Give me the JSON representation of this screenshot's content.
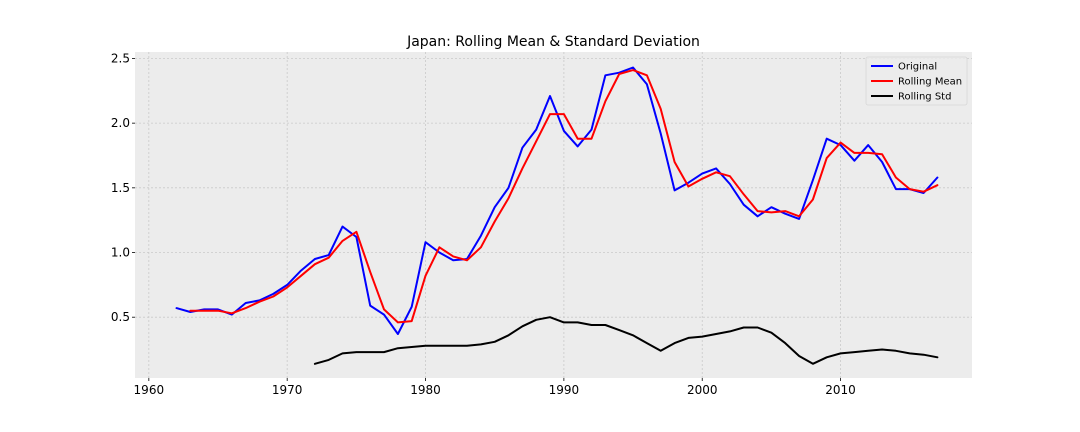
{
  "chart_data": {
    "type": "line",
    "title": "Japan: Rolling Mean & Standard Deviation",
    "xlabel": "",
    "ylabel": "",
    "xlim": [
      1959,
      2019.5
    ],
    "ylim": [
      0.03,
      2.55
    ],
    "xticks": [
      1960,
      1970,
      1980,
      1990,
      2000,
      2010
    ],
    "xtick_labels": [
      "1960",
      "1970",
      "1980",
      "1990",
      "2000",
      "2010"
    ],
    "yticks": [
      0.5,
      1.0,
      1.5,
      2.0,
      2.5
    ],
    "ytick_labels": [
      "0.5",
      "1.0",
      "1.5",
      "2.0",
      "2.5"
    ],
    "grid": true,
    "legend_position": "top-right",
    "background": "#ececec",
    "series": [
      {
        "name": "Original",
        "color": "#0000ff",
        "x": [
          1962,
          1963,
          1964,
          1965,
          1966,
          1967,
          1968,
          1969,
          1970,
          1971,
          1972,
          1973,
          1974,
          1975,
          1976,
          1977,
          1978,
          1979,
          1980,
          1981,
          1982,
          1983,
          1984,
          1985,
          1986,
          1987,
          1988,
          1989,
          1990,
          1991,
          1992,
          1993,
          1994,
          1995,
          1996,
          1997,
          1998,
          1999,
          2000,
          2001,
          2002,
          2003,
          2004,
          2005,
          2006,
          2007,
          2008,
          2009,
          2010,
          2011,
          2012,
          2013,
          2014,
          2015,
          2016,
          2017
        ],
        "y": [
          0.57,
          0.54,
          0.56,
          0.56,
          0.52,
          0.61,
          0.63,
          0.68,
          0.75,
          0.86,
          0.95,
          0.98,
          1.2,
          1.12,
          0.59,
          0.52,
          0.37,
          0.58,
          1.08,
          1.0,
          0.94,
          0.95,
          1.13,
          1.35,
          1.5,
          1.81,
          1.95,
          2.21,
          1.94,
          1.82,
          1.95,
          2.37,
          2.39,
          2.43,
          2.3,
          1.92,
          1.48,
          1.54,
          1.61,
          1.65,
          1.53,
          1.37,
          1.28,
          1.35,
          1.3,
          1.26,
          1.56,
          1.88,
          1.83,
          1.71,
          1.83,
          1.7,
          1.49,
          1.49,
          1.46,
          1.58
        ]
      },
      {
        "name": "Rolling Mean",
        "color": "#ff0000",
        "x": [
          1963,
          1964,
          1965,
          1966,
          1967,
          1968,
          1969,
          1970,
          1971,
          1972,
          1973,
          1974,
          1975,
          1976,
          1977,
          1978,
          1979,
          1980,
          1981,
          1982,
          1983,
          1984,
          1985,
          1986,
          1987,
          1988,
          1989,
          1990,
          1991,
          1992,
          1993,
          1994,
          1995,
          1996,
          1997,
          1998,
          1999,
          2000,
          2001,
          2002,
          2003,
          2004,
          2005,
          2006,
          2007,
          2008,
          2009,
          2010,
          2011,
          2012,
          2013,
          2014,
          2015,
          2016,
          2017
        ],
        "y": [
          0.55,
          0.55,
          0.55,
          0.53,
          0.57,
          0.62,
          0.66,
          0.73,
          0.82,
          0.91,
          0.96,
          1.09,
          1.16,
          0.85,
          0.56,
          0.46,
          0.47,
          0.82,
          1.04,
          0.97,
          0.94,
          1.04,
          1.24,
          1.42,
          1.65,
          1.86,
          2.07,
          2.07,
          1.88,
          1.88,
          2.17,
          2.38,
          2.41,
          2.37,
          2.11,
          1.7,
          1.51,
          1.57,
          1.62,
          1.59,
          1.45,
          1.32,
          1.31,
          1.32,
          1.28,
          1.41,
          1.73,
          1.85,
          1.77,
          1.77,
          1.76,
          1.58,
          1.49,
          1.47,
          1.52
        ]
      },
      {
        "name": "Rolling Std",
        "color": "#000000",
        "x": [
          1972,
          1973,
          1974,
          1975,
          1976,
          1977,
          1978,
          1979,
          1980,
          1981,
          1982,
          1983,
          1984,
          1985,
          1986,
          1987,
          1988,
          1989,
          1990,
          1991,
          1992,
          1993,
          1994,
          1995,
          1996,
          1997,
          1998,
          1999,
          2000,
          2001,
          2002,
          2003,
          2004,
          2005,
          2006,
          2007,
          2008,
          2009,
          2010,
          2011,
          2012,
          2013,
          2014,
          2015,
          2016,
          2017
        ],
        "y": [
          0.14,
          0.17,
          0.22,
          0.23,
          0.23,
          0.23,
          0.26,
          0.27,
          0.28,
          0.28,
          0.28,
          0.28,
          0.29,
          0.31,
          0.36,
          0.43,
          0.48,
          0.5,
          0.46,
          0.46,
          0.44,
          0.44,
          0.4,
          0.36,
          0.3,
          0.24,
          0.3,
          0.34,
          0.35,
          0.37,
          0.39,
          0.42,
          0.42,
          0.38,
          0.3,
          0.2,
          0.14,
          0.19,
          0.22,
          0.23,
          0.24,
          0.25,
          0.24,
          0.22,
          0.21,
          0.19
        ]
      }
    ]
  }
}
